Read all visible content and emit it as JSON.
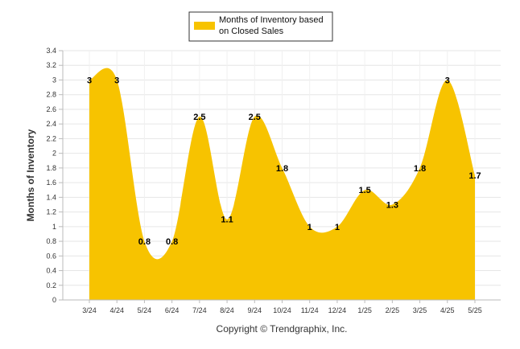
{
  "chart_data": {
    "type": "area",
    "categories": [
      "3/24",
      "4/24",
      "5/24",
      "6/24",
      "7/24",
      "8/24",
      "9/24",
      "10/24",
      "11/24",
      "12/24",
      "1/25",
      "2/25",
      "3/25",
      "4/25",
      "5/25"
    ],
    "series": [
      {
        "name": "Months of Inventory based on Closed Sales",
        "values": [
          3,
          3,
          0.8,
          0.8,
          2.5,
          1.1,
          2.5,
          1.8,
          1,
          1,
          1.5,
          1.3,
          1.8,
          3,
          1.7
        ]
      }
    ],
    "data_labels": [
      "3",
      "3",
      "0.8",
      "0.8",
      "2.5",
      "1.1",
      "2.5",
      "1.8",
      "1",
      "1",
      "1.5",
      "1.3",
      "1.8",
      "3",
      "1.7"
    ],
    "ylabel": "Months of Inventory",
    "xlabel": "",
    "ylim": [
      0,
      3.4
    ],
    "yticks": [
      "0",
      "0.2",
      "0.4",
      "0.6",
      "0.8",
      "1",
      "1.2",
      "1.4",
      "1.6",
      "1.8",
      "2",
      "2.2",
      "2.4",
      "2.6",
      "2.8",
      "3",
      "3.2",
      "3.4"
    ],
    "grid": true,
    "legend_position": "top-center",
    "legend_lines": [
      "Months of Inventory based",
      "on Closed Sales"
    ],
    "area_color": "#F7C300",
    "footer": "Copyright © Trendgraphix, Inc."
  }
}
